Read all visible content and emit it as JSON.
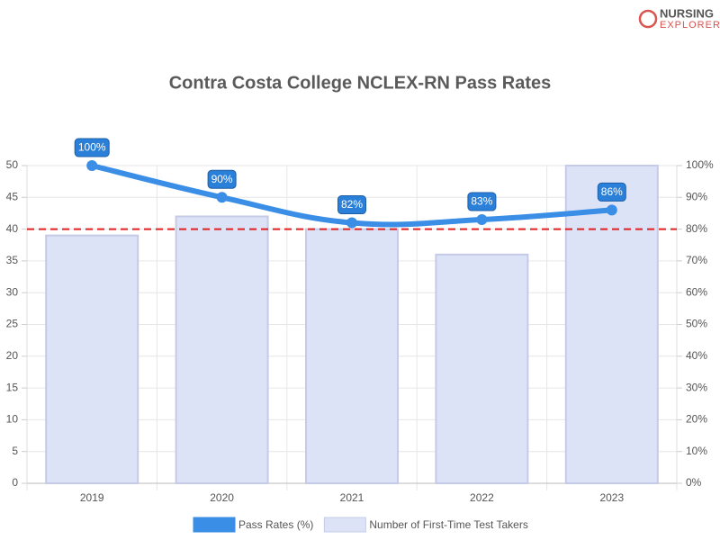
{
  "logo": {
    "line1": "NURSING",
    "line2": "EXPLORER"
  },
  "chart_data": {
    "type": "bar-line",
    "title": "Contra Costa College NCLEX-RN Pass Rates",
    "categories": [
      "2019",
      "2020",
      "2021",
      "2022",
      "2023"
    ],
    "series": [
      {
        "name": "Pass Rates (%)",
        "type": "line",
        "axis": "y2",
        "color": "#3a8ee6",
        "values": [
          100,
          90,
          82,
          83,
          86
        ],
        "value_labels": [
          "100%",
          "90%",
          "82%",
          "83%",
          "86%"
        ]
      },
      {
        "name": "Number of First-Time Test Takers",
        "type": "bar",
        "axis": "y",
        "color": "#dce3f7",
        "values": [
          39,
          42,
          40,
          36,
          50
        ]
      }
    ],
    "ylim": [
      0,
      50
    ],
    "yticks": [
      0,
      5,
      10,
      15,
      20,
      25,
      30,
      35,
      40,
      45,
      50
    ],
    "y2lim": [
      0,
      100
    ],
    "y2ticks": [
      {
        "value": 0,
        "label": "0%"
      },
      {
        "value": 10,
        "label": "10%"
      },
      {
        "value": 20,
        "label": "20%"
      },
      {
        "value": 30,
        "label": "30%"
      },
      {
        "value": 40,
        "label": "40%"
      },
      {
        "value": 50,
        "label": "50%"
      },
      {
        "value": 60,
        "label": "60%"
      },
      {
        "value": 70,
        "label": "70%"
      },
      {
        "value": 80,
        "label": "80%"
      },
      {
        "value": 90,
        "label": "90%"
      },
      {
        "value": 100,
        "label": "100%"
      }
    ],
    "reference_line": {
      "value": 80,
      "axis": "y2",
      "color": "#e02020"
    },
    "grid": true,
    "legend": "bottom"
  }
}
